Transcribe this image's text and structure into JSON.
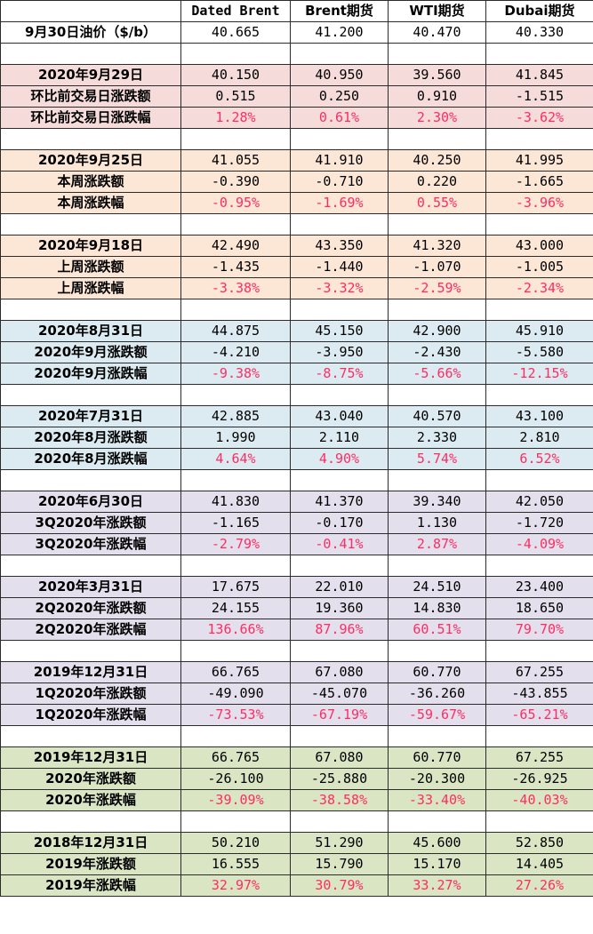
{
  "colors": {
    "pink": "#f5dcdb",
    "peach": "#fce6d6",
    "blue": "#dcebf1",
    "purple": "#e4dfec",
    "green": "#d9e5c3",
    "negative_red": "#ff2c62"
  },
  "header": [
    "",
    "Dated Brent",
    "Brent期货",
    "WTI期货",
    "Dubai期货"
  ],
  "top_row": {
    "label": "9月30日油价（$/b）",
    "values": [
      "40.665",
      "41.200",
      "40.470",
      "40.330"
    ]
  },
  "groups": [
    {
      "color": "pink",
      "rows": [
        {
          "label": "2020年9月29日",
          "values": [
            "40.150",
            "40.950",
            "39.560",
            "41.845"
          ],
          "red": false
        },
        {
          "label": "环比前交易日涨跌额",
          "values": [
            "0.515",
            "0.250",
            "0.910",
            "-1.515"
          ],
          "red": false
        },
        {
          "label": "环比前交易日涨跌幅",
          "values": [
            "1.28%",
            "0.61%",
            "2.30%",
            "-3.62%"
          ],
          "red": true
        }
      ]
    },
    {
      "color": "peach",
      "rows": [
        {
          "label": "2020年9月25日",
          "values": [
            "41.055",
            "41.910",
            "40.250",
            "41.995"
          ],
          "red": false
        },
        {
          "label": "本周涨跌额",
          "values": [
            "-0.390",
            "-0.710",
            "0.220",
            "-1.665"
          ],
          "red": false
        },
        {
          "label": "本周涨跌幅",
          "values": [
            "-0.95%",
            "-1.69%",
            "0.55%",
            "-3.96%"
          ],
          "red": true
        }
      ]
    },
    {
      "color": "peach",
      "rows": [
        {
          "label": "2020年9月18日",
          "values": [
            "42.490",
            "43.350",
            "41.320",
            "43.000"
          ],
          "red": false
        },
        {
          "label": "上周涨跌额",
          "values": [
            "-1.435",
            "-1.440",
            "-1.070",
            "-1.005"
          ],
          "red": false
        },
        {
          "label": "上周涨跌幅",
          "values": [
            "-3.38%",
            "-3.32%",
            "-2.59%",
            "-2.34%"
          ],
          "red": true
        }
      ]
    },
    {
      "color": "blue",
      "rows": [
        {
          "label": "2020年8月31日",
          "values": [
            "44.875",
            "45.150",
            "42.900",
            "45.910"
          ],
          "red": false
        },
        {
          "label": "2020年9月涨跌额",
          "values": [
            "-4.210",
            "-3.950",
            "-2.430",
            "-5.580"
          ],
          "red": false
        },
        {
          "label": "2020年9月涨跌幅",
          "values": [
            "-9.38%",
            "-8.75%",
            "-5.66%",
            "-12.15%"
          ],
          "red": true
        }
      ]
    },
    {
      "color": "blue",
      "rows": [
        {
          "label": "2020年7月31日",
          "values": [
            "42.885",
            "43.040",
            "40.570",
            "43.100"
          ],
          "red": false
        },
        {
          "label": "2020年8月涨跌额",
          "values": [
            "1.990",
            "2.110",
            "2.330",
            "2.810"
          ],
          "red": false
        },
        {
          "label": "2020年8月涨跌幅",
          "values": [
            "4.64%",
            "4.90%",
            "5.74%",
            "6.52%"
          ],
          "red": true
        }
      ]
    },
    {
      "color": "purple",
      "rows": [
        {
          "label": "2020年6月30日",
          "values": [
            "41.830",
            "41.370",
            "39.340",
            "42.050"
          ],
          "red": false
        },
        {
          "label": "3Q2020年涨跌额",
          "values": [
            "-1.165",
            "-0.170",
            "1.130",
            "-1.720"
          ],
          "red": false
        },
        {
          "label": "3Q2020年涨跌幅",
          "values": [
            "-2.79%",
            "-0.41%",
            "2.87%",
            "-4.09%"
          ],
          "red": true
        }
      ]
    },
    {
      "color": "purple",
      "rows": [
        {
          "label": "2020年3月31日",
          "values": [
            "17.675",
            "22.010",
            "24.510",
            "23.400"
          ],
          "red": false
        },
        {
          "label": "2Q2020年涨跌额",
          "values": [
            "24.155",
            "19.360",
            "14.830",
            "18.650"
          ],
          "red": false
        },
        {
          "label": "2Q2020年涨跌幅",
          "values": [
            "136.66%",
            "87.96%",
            "60.51%",
            "79.70%"
          ],
          "red": true
        }
      ]
    },
    {
      "color": "purple",
      "rows": [
        {
          "label": "2019年12月31日",
          "values": [
            "66.765",
            "67.080",
            "60.770",
            "67.255"
          ],
          "red": false
        },
        {
          "label": "1Q2020年涨跌额",
          "values": [
            "-49.090",
            "-45.070",
            "-36.260",
            "-43.855"
          ],
          "red": false
        },
        {
          "label": "1Q2020年涨跌幅",
          "values": [
            "-73.53%",
            "-67.19%",
            "-59.67%",
            "-65.21%"
          ],
          "red": true
        }
      ]
    },
    {
      "color": "green",
      "rows": [
        {
          "label": "2019年12月31日",
          "values": [
            "66.765",
            "67.080",
            "60.770",
            "67.255"
          ],
          "red": false
        },
        {
          "label": "2020年涨跌额",
          "values": [
            "-26.100",
            "-25.880",
            "-20.300",
            "-26.925"
          ],
          "red": false
        },
        {
          "label": "2020年涨跌幅",
          "values": [
            "-39.09%",
            "-38.58%",
            "-33.40%",
            "-40.03%"
          ],
          "red": true
        }
      ]
    },
    {
      "color": "green",
      "rows": [
        {
          "label": "2018年12月31日",
          "values": [
            "50.210",
            "51.290",
            "45.600",
            "52.850"
          ],
          "red": false
        },
        {
          "label": "2019年涨跌额",
          "values": [
            "16.555",
            "15.790",
            "15.170",
            "14.405"
          ],
          "red": false
        },
        {
          "label": "2019年涨跌幅",
          "values": [
            "32.97%",
            "30.79%",
            "33.27%",
            "27.26%"
          ],
          "red": true
        }
      ]
    }
  ]
}
